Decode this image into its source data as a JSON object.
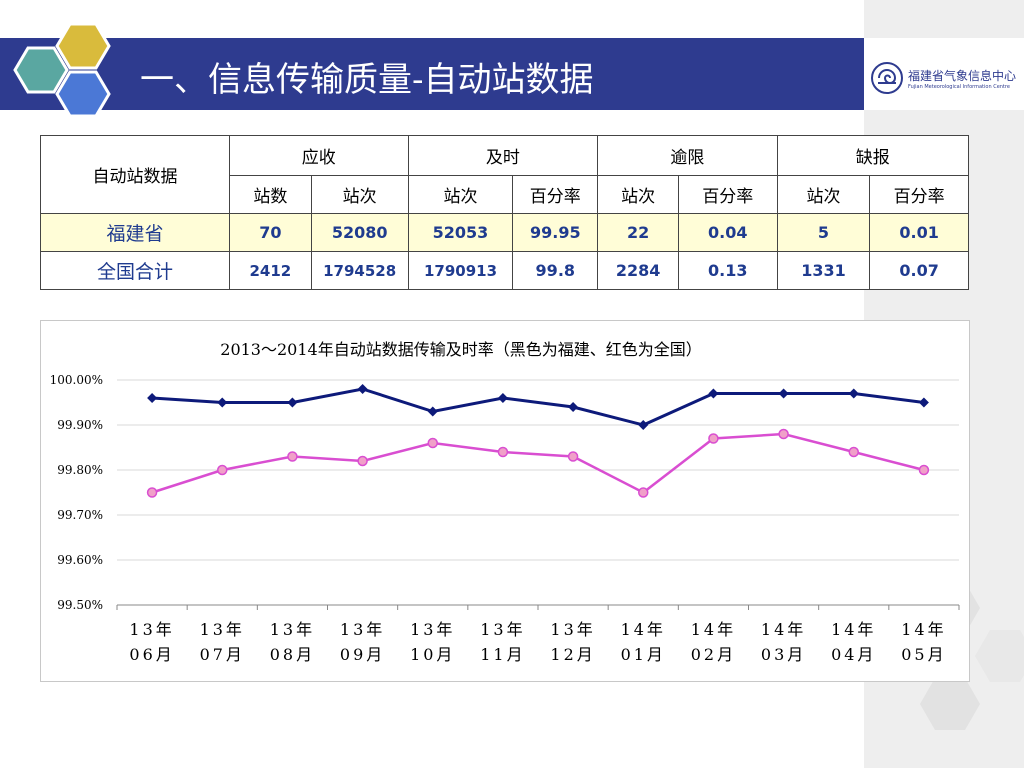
{
  "header": {
    "title": "一、信息传输质量-自动站数据",
    "logo_cn": "福建省气象信息中心",
    "logo_en": "Fujian Meteorological Information Centre"
  },
  "colors": {
    "banner": "#2e3b8f",
    "hex_teal": "#5aa7a1",
    "hex_gold": "#d9bb3c",
    "hex_blue": "#4b78d6",
    "fujian_line": "#0d1a7a",
    "national_line": "#d94ed1"
  },
  "table": {
    "corner": "自动站数据",
    "groups": [
      "应收",
      "及时",
      "逾限",
      "缺报"
    ],
    "subheaders": [
      "站数",
      "站次",
      "站次",
      "百分率",
      "站次",
      "百分率",
      "站次",
      "百分率"
    ],
    "rows": [
      {
        "label": "福建省",
        "values": [
          "70",
          "52080",
          "52053",
          "99.95",
          "22",
          "0.04",
          "5",
          "0.01"
        ]
      },
      {
        "label": "全国合计",
        "values": [
          "2412",
          "1794528",
          "1790913",
          "99.8",
          "2284",
          "0.13",
          "1331",
          "0.07"
        ]
      }
    ]
  },
  "chart_data": {
    "type": "line",
    "title": "2013～2014年自动站数据传输及时率（黑色为福建、红色为全国）",
    "categories": [
      [
        "13年",
        "06月"
      ],
      [
        "13年",
        "07月"
      ],
      [
        "13年",
        "08月"
      ],
      [
        "13年",
        "09月"
      ],
      [
        "13年",
        "10月"
      ],
      [
        "13年",
        "11月"
      ],
      [
        "13年",
        "12月"
      ],
      [
        "14年",
        "01月"
      ],
      [
        "14年",
        "02月"
      ],
      [
        "14年",
        "03月"
      ],
      [
        "14年",
        "04月"
      ],
      [
        "14年",
        "05月"
      ]
    ],
    "series": [
      {
        "color": "#0d1a7a",
        "values": [
          99.96,
          99.95,
          99.95,
          99.98,
          99.93,
          99.96,
          99.94,
          99.9,
          99.97,
          99.97,
          99.97,
          99.95
        ]
      },
      {
        "color": "#d94ed1",
        "values": [
          99.75,
          99.8,
          99.83,
          99.82,
          99.86,
          99.84,
          99.83,
          99.75,
          99.87,
          99.88,
          99.84,
          99.8
        ]
      }
    ],
    "ylim": [
      99.5,
      100.0
    ],
    "yticks": [
      {
        "value": 100.0,
        "label": "100.00%"
      },
      {
        "value": 99.9,
        "label": "99.90%"
      },
      {
        "value": 99.8,
        "label": "99.80%"
      },
      {
        "value": 99.7,
        "label": "99.70%"
      },
      {
        "value": 99.6,
        "label": "99.60%"
      },
      {
        "value": 99.5,
        "label": "99.50%"
      }
    ],
    "grid": true
  }
}
